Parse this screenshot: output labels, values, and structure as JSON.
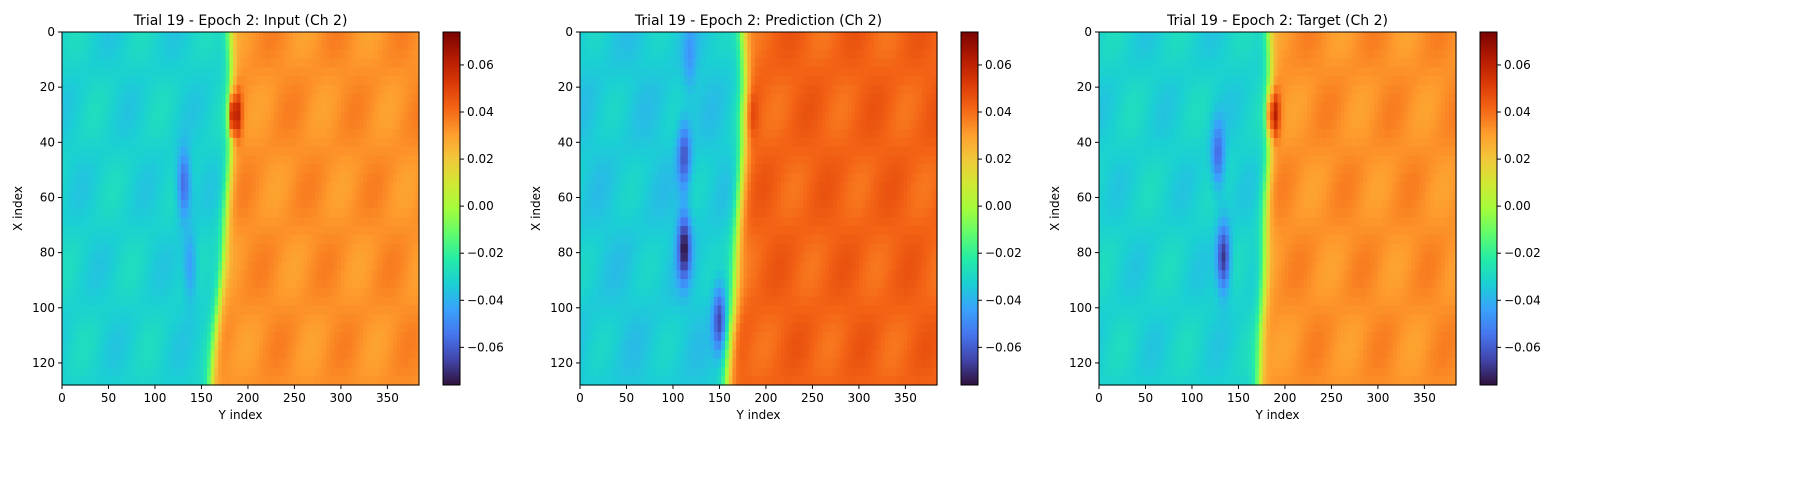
{
  "colormap": "turbo",
  "colors": {
    "turbo_stops": [
      "#30123b",
      "#4145ab",
      "#4675ed",
      "#39a2fc",
      "#1bcfd4",
      "#24eca6",
      "#61fc6c",
      "#a4fc3b",
      "#d1e834",
      "#f3c63a",
      "#fe9b2d",
      "#f36315",
      "#d93806",
      "#b11901",
      "#7a0402"
    ]
  },
  "chart_data": [
    {
      "type": "heatmap",
      "title": "Trial 19 - Epoch 2: Input (Ch 2)",
      "xlabel": "Y index",
      "ylabel": "X index",
      "xlim": [
        0,
        384
      ],
      "ylim": [
        128,
        0
      ],
      "xticks": [
        "0",
        "50",
        "100",
        "150",
        "200",
        "250",
        "300",
        "350"
      ],
      "yticks": [
        "0",
        "20",
        "40",
        "60",
        "80",
        "100",
        "120"
      ],
      "colorbar": {
        "range": [
          -0.076,
          0.074
        ],
        "ticks": [
          "0.06",
          "0.04",
          "0.02",
          "0.00",
          "−0.02",
          "−0.04",
          "−0.06"
        ]
      },
      "field": {
        "left_value": -0.032,
        "right_value": 0.033,
        "front_position": [
          [
            0,
            180
          ],
          [
            20,
            183
          ],
          [
            40,
            182
          ],
          [
            60,
            178
          ],
          [
            80,
            174
          ],
          [
            100,
            168
          ],
          [
            128,
            160
          ]
        ],
        "front_width": 12,
        "features": [
          {
            "kind": "trough",
            "x": 131,
            "y": 55,
            "value": -0.06
          },
          {
            "kind": "trough",
            "x": 138,
            "y": 85,
            "value": -0.048
          },
          {
            "kind": "peak",
            "x": 187,
            "y": 30,
            "value": 0.072
          }
        ]
      }
    },
    {
      "type": "heatmap",
      "title": "Trial 19 - Epoch 2: Prediction (Ch 2)",
      "xlabel": "Y index",
      "ylabel": "X index",
      "xlim": [
        0,
        384
      ],
      "ylim": [
        128,
        0
      ],
      "xticks": [
        "0",
        "50",
        "100",
        "150",
        "200",
        "250",
        "300",
        "350"
      ],
      "yticks": [
        "0",
        "20",
        "40",
        "60",
        "80",
        "100",
        "120"
      ],
      "colorbar": {
        "range": [
          -0.076,
          0.074
        ],
        "ticks": [
          "0.06",
          "0.04",
          "0.02",
          "0.00",
          "−0.02",
          "−0.04",
          "−0.06"
        ]
      },
      "field": {
        "left_value": -0.034,
        "right_value": 0.042,
        "front_position": [
          [
            0,
            175
          ],
          [
            20,
            178
          ],
          [
            40,
            176
          ],
          [
            60,
            172
          ],
          [
            80,
            168
          ],
          [
            100,
            165
          ],
          [
            128,
            158
          ]
        ],
        "front_width": 14,
        "features": [
          {
            "kind": "trough",
            "x": 112,
            "y": 45,
            "value": -0.062
          },
          {
            "kind": "trough",
            "x": 112,
            "y": 78,
            "value": -0.074
          },
          {
            "kind": "trough",
            "x": 150,
            "y": 105,
            "value": -0.066
          },
          {
            "kind": "trough",
            "x": 118,
            "y": 10,
            "value": -0.045
          },
          {
            "kind": "peak",
            "x": 185,
            "y": 30,
            "value": 0.052
          }
        ]
      }
    },
    {
      "type": "heatmap",
      "title": "Trial 19 - Epoch 2: Target (Ch 2)",
      "xlabel": "Y index",
      "ylabel": "X index",
      "xlim": [
        0,
        384
      ],
      "ylim": [
        128,
        0
      ],
      "xticks": [
        "0",
        "50",
        "100",
        "150",
        "200",
        "250",
        "300",
        "350"
      ],
      "yticks": [
        "0",
        "20",
        "40",
        "60",
        "80",
        "100",
        "120"
      ],
      "colorbar": {
        "range": [
          -0.076,
          0.074
        ],
        "ticks": [
          "0.06",
          "0.04",
          "0.02",
          "0.00",
          "−0.02",
          "−0.04",
          "−0.06"
        ]
      },
      "field": {
        "left_value": -0.032,
        "right_value": 0.033,
        "front_position": [
          [
            0,
            182
          ],
          [
            20,
            185
          ],
          [
            40,
            184
          ],
          [
            60,
            180
          ],
          [
            80,
            178
          ],
          [
            100,
            176
          ],
          [
            128,
            172
          ]
        ],
        "front_width": 12,
        "features": [
          {
            "kind": "trough",
            "x": 128,
            "y": 45,
            "value": -0.058
          },
          {
            "kind": "trough",
            "x": 134,
            "y": 82,
            "value": -0.07
          },
          {
            "kind": "peak",
            "x": 188,
            "y": 30,
            "value": 0.074
          }
        ]
      }
    }
  ]
}
